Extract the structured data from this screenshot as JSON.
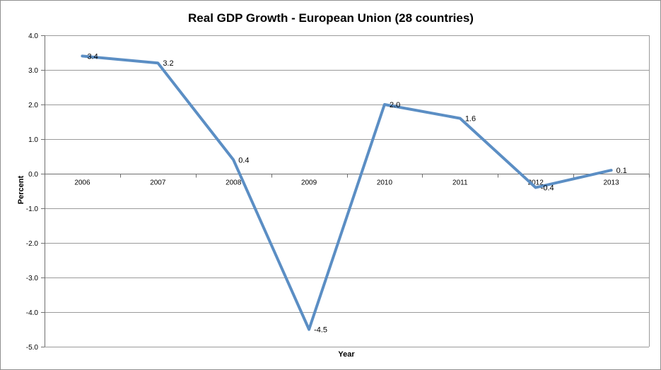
{
  "chart_data": {
    "type": "line",
    "title": "Real GDP Growth - European Union (28 countries)",
    "xlabel": "Year",
    "ylabel": "Percent",
    "categories": [
      "2006",
      "2007",
      "2008",
      "2009",
      "2010",
      "2011",
      "2012",
      "2013"
    ],
    "series": [
      {
        "name": "Real GDP Growth",
        "values": [
          3.4,
          3.2,
          0.4,
          -4.5,
          2.0,
          1.6,
          -0.4,
          0.1
        ],
        "labels": [
          "3.4",
          "3.2",
          "0.4",
          "-4.5",
          "2.0",
          "1.6",
          "-0.4",
          "0.1"
        ]
      }
    ],
    "ylim": [
      -5.0,
      4.0
    ],
    "yticks": [
      4.0,
      3.0,
      2.0,
      1.0,
      0.0,
      -1.0,
      -2.0,
      -3.0,
      -4.0,
      -5.0
    ],
    "ytick_labels": [
      "4.0",
      "3.0",
      "2.0",
      "1.0",
      "0.0",
      "-1.0",
      "-2.0",
      "-3.0",
      "-4.0",
      "-5.0"
    ],
    "grid": true,
    "legend": "none",
    "line_color": "#5b8ec4"
  }
}
